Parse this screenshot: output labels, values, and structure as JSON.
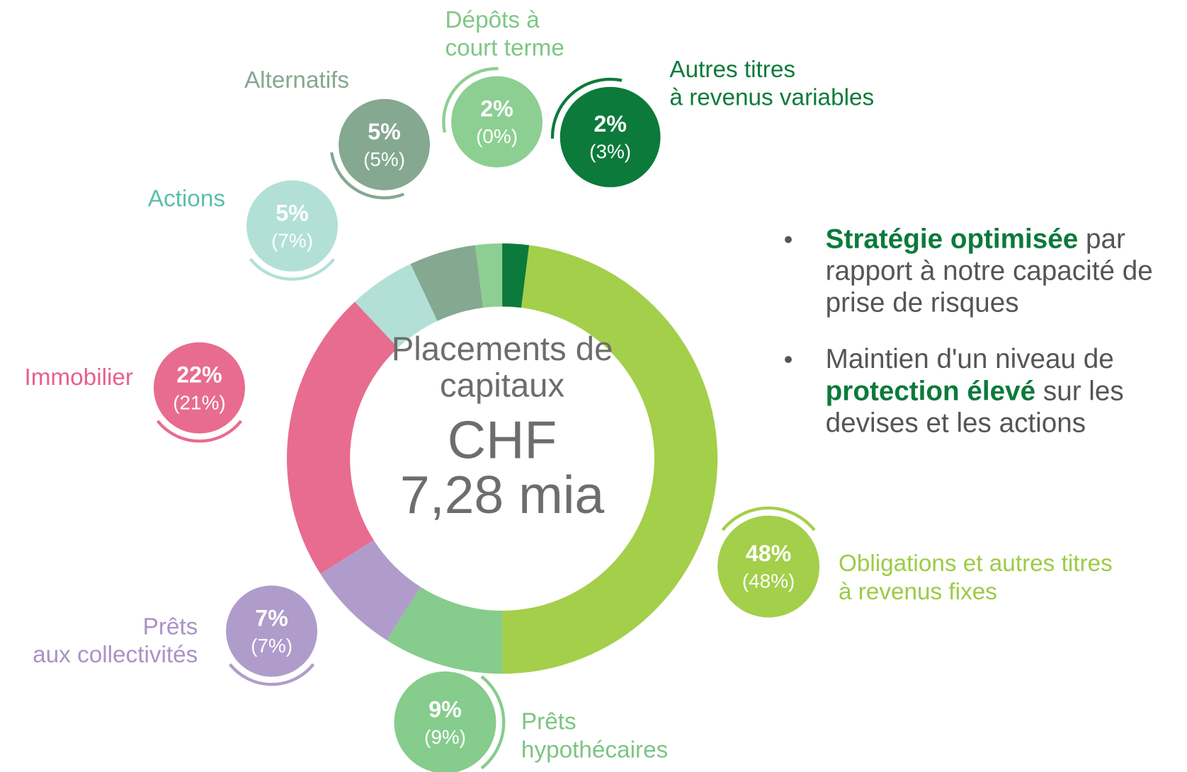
{
  "chart_data": {
    "type": "pie",
    "donut": true,
    "center_text": [
      "Placements de",
      "capitaux",
      "CHF",
      "7,28 mia"
    ],
    "categories": [
      [
        "Autres titres",
        "à revenus variables"
      ],
      [
        "Obligations et autres titres",
        "à revenus fixes"
      ],
      [
        "Prêts",
        "hypothécaires"
      ],
      [
        "Prêts",
        "aux collectivités"
      ],
      [
        "Immobilier"
      ],
      [
        "Actions"
      ],
      [
        "Alternatifs"
      ],
      [
        "Dépôts à",
        "court terme"
      ]
    ],
    "values": [
      2,
      48,
      9,
      7,
      22,
      5,
      5,
      2
    ],
    "value_labels": [
      "2%",
      "48%",
      "9%",
      "7%",
      "22%",
      "5%",
      "5%",
      "2%"
    ],
    "comparison_values": [
      3,
      48,
      9,
      7,
      21,
      7,
      5,
      0
    ],
    "comparison_labels": [
      "(3%)",
      "(48%)",
      "(9%)",
      "(7%)",
      "(21%)",
      "(7%)",
      "(5%)",
      "(0%)"
    ],
    "colors": [
      "#0b7a3b",
      "#a3cf4a",
      "#86cc8c",
      "#b09ccb",
      "#e86c8f",
      "#b2e0d6",
      "#84a890",
      "#8dcf92"
    ],
    "label_colors": [
      "#0b7a3b",
      "#9ccb45",
      "#7cc483",
      "#a893c6",
      "#e6618a",
      "#5cbfa8",
      "#84a890",
      "#7dc785"
    ]
  },
  "bullets": [
    {
      "lines": [
        [
          {
            "text": "Stratégie optimisée",
            "bold": true
          },
          {
            "text": " par"
          }
        ],
        [
          {
            "text": "rapport à notre capacité de"
          }
        ],
        [
          {
            "text": "prise de risques"
          }
        ]
      ]
    },
    {
      "lines": [
        [
          {
            "text": "Maintien d'un niveau de"
          }
        ],
        [
          {
            "text": "protection élevé",
            "bold": true
          },
          {
            "text": " sur les"
          }
        ],
        [
          {
            "text": "devises et les actions"
          }
        ]
      ]
    }
  ]
}
